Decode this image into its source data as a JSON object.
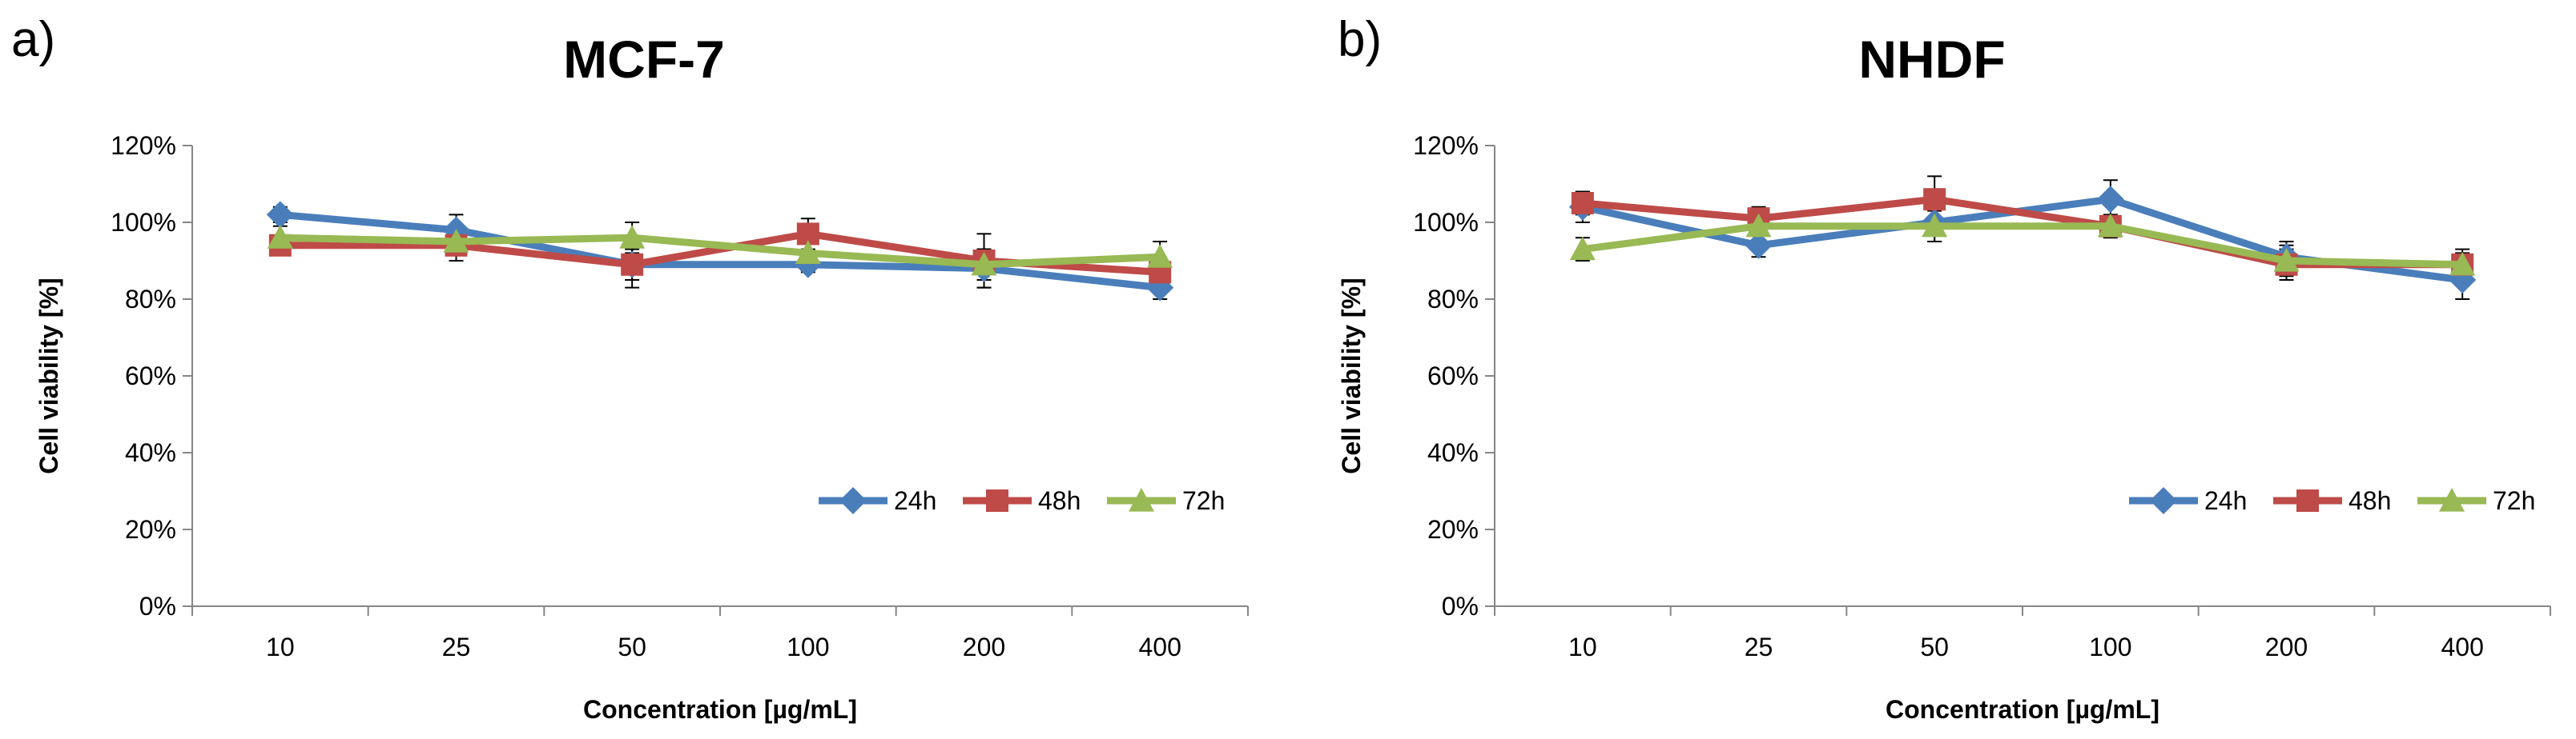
{
  "chart_data": [
    {
      "type": "line",
      "panel_label": "a)",
      "title": "MCF-7",
      "xlabel": "Concentration [µg/mL]",
      "ylabel": "Cell viability [%]",
      "categories": [
        "10",
        "25",
        "50",
        "100",
        "200",
        "400"
      ],
      "ylim": [
        0,
        1.2
      ],
      "yticks": [
        "0%",
        "20%",
        "40%",
        "60%",
        "80%",
        "100%",
        "120%"
      ],
      "legend_position": "bottom-right",
      "series": [
        {
          "name": "24h",
          "color": "#4a7ebb",
          "marker": "diamond",
          "values": [
            1.02,
            0.98,
            0.89,
            0.89,
            0.88,
            0.83
          ],
          "errors": [
            0.02,
            0.04,
            0.04,
            0.02,
            0.05,
            0.03
          ]
        },
        {
          "name": "48h",
          "color": "#be4b48",
          "marker": "square",
          "values": [
            0.94,
            0.94,
            0.89,
            0.97,
            0.9,
            0.87
          ],
          "errors": [
            0.02,
            0.04,
            0.06,
            0.04,
            0.07,
            0.03
          ]
        },
        {
          "name": "72h",
          "color": "#98b954",
          "marker": "triangle",
          "values": [
            0.96,
            0.95,
            0.96,
            0.92,
            0.89,
            0.91
          ],
          "errors": [
            0.03,
            0.03,
            0.04,
            0.03,
            0.04,
            0.04
          ]
        }
      ]
    },
    {
      "type": "line",
      "panel_label": "b)",
      "title": "NHDF",
      "xlabel": "Concentration [µg/mL]",
      "ylabel": "Cell viability [%]",
      "categories": [
        "10",
        "25",
        "50",
        "100",
        "200",
        "400"
      ],
      "ylim": [
        0,
        1.2
      ],
      "yticks": [
        "0%",
        "20%",
        "40%",
        "60%",
        "80%",
        "100%",
        "120%"
      ],
      "legend_position": "bottom-right",
      "series": [
        {
          "name": "24h",
          "color": "#4a7ebb",
          "marker": "diamond",
          "values": [
            1.04,
            0.94,
            1.0,
            1.06,
            0.91,
            0.85
          ],
          "errors": [
            0.04,
            0.03,
            0.05,
            0.05,
            0.04,
            0.05
          ]
        },
        {
          "name": "48h",
          "color": "#be4b48",
          "marker": "square",
          "values": [
            1.05,
            1.01,
            1.06,
            0.99,
            0.89,
            0.89
          ],
          "errors": [
            0.03,
            0.03,
            0.06,
            0.03,
            0.04,
            0.04
          ]
        },
        {
          "name": "72h",
          "color": "#98b954",
          "marker": "triangle",
          "values": [
            0.93,
            0.99,
            0.99,
            0.99,
            0.9,
            0.89
          ],
          "errors": [
            0.03,
            0.02,
            0.04,
            0.02,
            0.04,
            0.03
          ]
        }
      ]
    }
  ]
}
